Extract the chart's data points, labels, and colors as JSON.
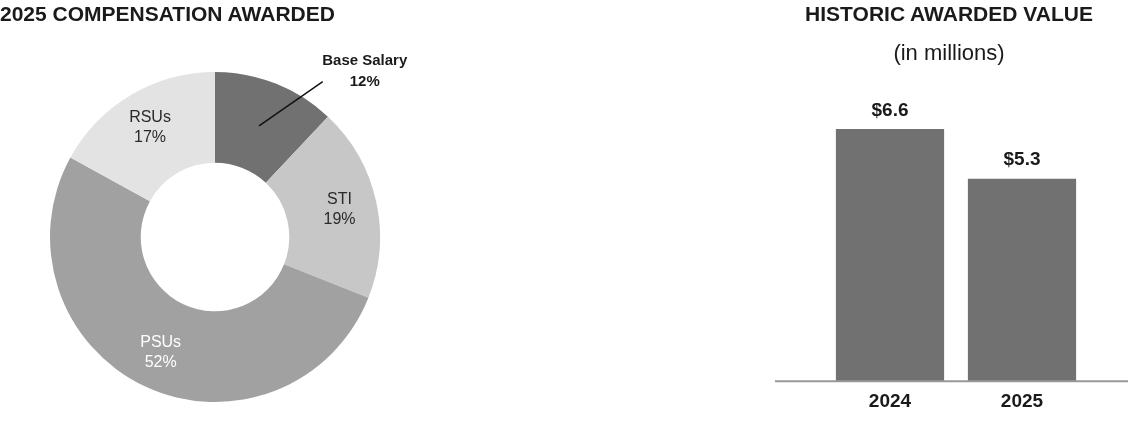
{
  "chart_data": [
    {
      "type": "donut",
      "title": "2025 COMPENSATION AWARDED",
      "categories": [
        "Base Salary",
        "STI",
        "PSUs",
        "RSUs"
      ],
      "values": [
        12,
        19,
        52,
        17
      ],
      "colors": [
        "#717171",
        "#c6c7c6",
        "#a0a1a0",
        "#e2e3e2"
      ],
      "value_labels": [
        "12%",
        "19%",
        "52%",
        "17%"
      ]
    },
    {
      "type": "bar",
      "title": "HISTORIC AWARDED VALUE",
      "subtitle": "(in millions)",
      "categories": [
        "2024",
        "2025"
      ],
      "values": [
        6.6,
        5.3
      ],
      "color": "#717171",
      "ylim": [
        0,
        6.6
      ],
      "value_labels": [
        "$6.6",
        "$5.3"
      ],
      "tick_labels": "x"
    }
  ]
}
